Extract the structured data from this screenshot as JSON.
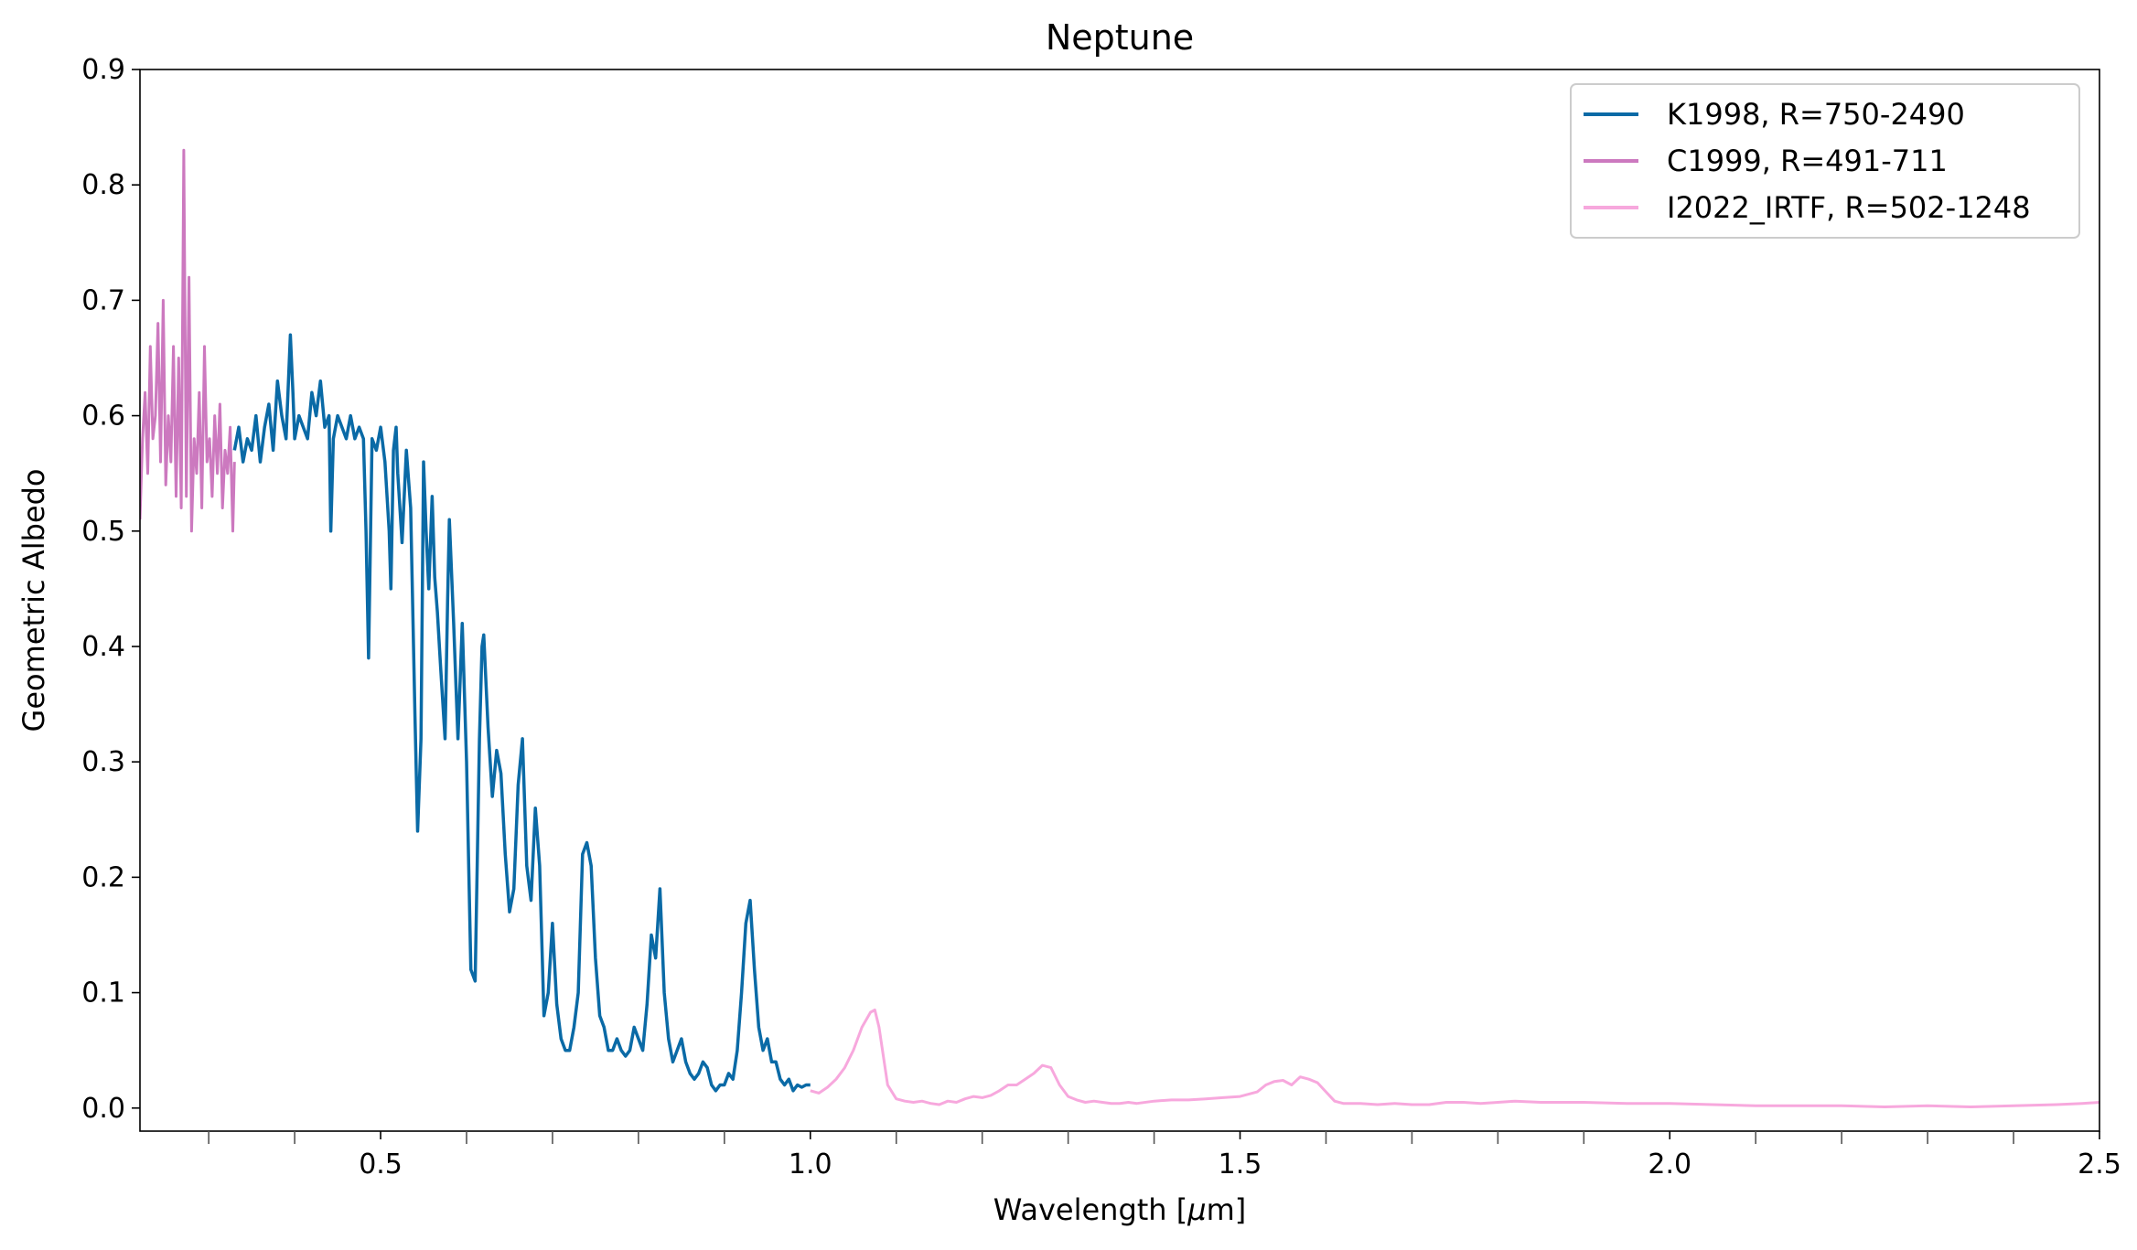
{
  "chart_data": {
    "type": "line",
    "title": "Neptune",
    "xlabel_prefix": "Wavelength [",
    "xlabel_unit_mu": "μ",
    "xlabel_suffix": "m]",
    "ylabel": "Geometric Albedo",
    "xlim": [
      0.22,
      2.5
    ],
    "ylim": [
      -0.02,
      0.9
    ],
    "x_ticks": [
      0.5,
      1.0,
      1.5,
      2.0,
      2.5
    ],
    "x_tick_labels": [
      "0.5",
      "1.0",
      "1.5",
      "2.0",
      "2.5"
    ],
    "x_minor_ticks": [
      0.3,
      0.4,
      0.6,
      0.7,
      0.8,
      0.9,
      1.1,
      1.2,
      1.3,
      1.4,
      1.6,
      1.7,
      1.8,
      1.9,
      2.1,
      2.2,
      2.3,
      2.4
    ],
    "y_ticks": [
      0.0,
      0.1,
      0.2,
      0.3,
      0.4,
      0.5,
      0.6,
      0.7,
      0.8,
      0.9
    ],
    "y_tick_labels": [
      "0.0",
      "0.1",
      "0.2",
      "0.3",
      "0.4",
      "0.5",
      "0.6",
      "0.7",
      "0.8",
      "0.9"
    ],
    "grid": false,
    "legend_position": "top-right",
    "series": [
      {
        "name": "K1998, R=750-2490",
        "color": "#0a6aa6",
        "x": [
          0.33,
          0.335,
          0.34,
          0.345,
          0.35,
          0.355,
          0.36,
          0.365,
          0.37,
          0.375,
          0.38,
          0.385,
          0.39,
          0.395,
          0.398,
          0.4,
          0.405,
          0.41,
          0.415,
          0.42,
          0.425,
          0.43,
          0.435,
          0.44,
          0.442,
          0.445,
          0.45,
          0.455,
          0.46,
          0.465,
          0.47,
          0.475,
          0.48,
          0.483,
          0.486,
          0.49,
          0.495,
          0.5,
          0.505,
          0.51,
          0.512,
          0.515,
          0.518,
          0.52,
          0.525,
          0.53,
          0.535,
          0.54,
          0.543,
          0.547,
          0.55,
          0.553,
          0.556,
          0.56,
          0.563,
          0.566,
          0.57,
          0.575,
          0.578,
          0.58,
          0.585,
          0.59,
          0.595,
          0.6,
          0.605,
          0.61,
          0.615,
          0.618,
          0.62,
          0.625,
          0.63,
          0.635,
          0.64,
          0.645,
          0.65,
          0.655,
          0.66,
          0.665,
          0.67,
          0.675,
          0.68,
          0.685,
          0.69,
          0.695,
          0.7,
          0.705,
          0.71,
          0.715,
          0.72,
          0.725,
          0.73,
          0.735,
          0.74,
          0.745,
          0.75,
          0.755,
          0.76,
          0.765,
          0.77,
          0.775,
          0.78,
          0.785,
          0.79,
          0.795,
          0.8,
          0.805,
          0.81,
          0.815,
          0.82,
          0.825,
          0.83,
          0.835,
          0.84,
          0.845,
          0.85,
          0.855,
          0.86,
          0.865,
          0.87,
          0.875,
          0.88,
          0.885,
          0.89,
          0.895,
          0.9,
          0.905,
          0.91,
          0.915,
          0.92,
          0.925,
          0.93,
          0.935,
          0.94,
          0.945,
          0.95,
          0.955,
          0.96,
          0.965,
          0.97,
          0.975,
          0.98,
          0.985,
          0.99,
          0.995,
          1.0
        ],
        "y": [
          0.57,
          0.59,
          0.56,
          0.58,
          0.57,
          0.6,
          0.56,
          0.59,
          0.61,
          0.57,
          0.63,
          0.6,
          0.58,
          0.67,
          0.62,
          0.58,
          0.6,
          0.59,
          0.58,
          0.62,
          0.6,
          0.63,
          0.59,
          0.6,
          0.5,
          0.58,
          0.6,
          0.59,
          0.58,
          0.6,
          0.58,
          0.59,
          0.58,
          0.5,
          0.39,
          0.58,
          0.57,
          0.59,
          0.56,
          0.5,
          0.45,
          0.57,
          0.59,
          0.55,
          0.49,
          0.57,
          0.52,
          0.34,
          0.24,
          0.32,
          0.56,
          0.5,
          0.45,
          0.53,
          0.46,
          0.43,
          0.38,
          0.32,
          0.44,
          0.51,
          0.42,
          0.32,
          0.42,
          0.3,
          0.12,
          0.11,
          0.32,
          0.4,
          0.41,
          0.33,
          0.27,
          0.31,
          0.29,
          0.22,
          0.17,
          0.19,
          0.28,
          0.32,
          0.21,
          0.18,
          0.26,
          0.21,
          0.08,
          0.1,
          0.16,
          0.09,
          0.06,
          0.05,
          0.05,
          0.07,
          0.1,
          0.22,
          0.23,
          0.21,
          0.13,
          0.08,
          0.07,
          0.05,
          0.05,
          0.06,
          0.05,
          0.045,
          0.05,
          0.07,
          0.06,
          0.05,
          0.09,
          0.15,
          0.13,
          0.19,
          0.1,
          0.06,
          0.04,
          0.05,
          0.06,
          0.04,
          0.03,
          0.025,
          0.03,
          0.04,
          0.035,
          0.02,
          0.015,
          0.02,
          0.02,
          0.03,
          0.025,
          0.05,
          0.1,
          0.16,
          0.18,
          0.12,
          0.07,
          0.05,
          0.06,
          0.04,
          0.04,
          0.025,
          0.02,
          0.025,
          0.015,
          0.02,
          0.018,
          0.02,
          0.02
        ]
      },
      {
        "name": "C1999, R=491-711",
        "color": "#cc79bf",
        "x": [
          0.22,
          0.223,
          0.226,
          0.229,
          0.232,
          0.235,
          0.238,
          0.241,
          0.244,
          0.247,
          0.25,
          0.253,
          0.256,
          0.259,
          0.262,
          0.265,
          0.268,
          0.271,
          0.274,
          0.277,
          0.28,
          0.283,
          0.286,
          0.289,
          0.292,
          0.295,
          0.298,
          0.301,
          0.304,
          0.307,
          0.31,
          0.313,
          0.316,
          0.319,
          0.322,
          0.325,
          0.328,
          0.33
        ],
        "y": [
          0.51,
          0.58,
          0.62,
          0.55,
          0.66,
          0.58,
          0.6,
          0.68,
          0.56,
          0.7,
          0.54,
          0.6,
          0.56,
          0.66,
          0.53,
          0.65,
          0.52,
          0.83,
          0.53,
          0.72,
          0.5,
          0.58,
          0.55,
          0.62,
          0.52,
          0.66,
          0.56,
          0.58,
          0.53,
          0.6,
          0.55,
          0.61,
          0.52,
          0.57,
          0.55,
          0.59,
          0.5,
          0.56
        ]
      },
      {
        "name": "I2022_IRTF, R=502-1248",
        "color": "#f7a8dd",
        "x": [
          1.0,
          1.01,
          1.02,
          1.03,
          1.04,
          1.05,
          1.06,
          1.07,
          1.075,
          1.08,
          1.09,
          1.1,
          1.11,
          1.12,
          1.13,
          1.14,
          1.15,
          1.16,
          1.17,
          1.18,
          1.19,
          1.2,
          1.21,
          1.22,
          1.23,
          1.24,
          1.25,
          1.26,
          1.27,
          1.275,
          1.28,
          1.29,
          1.3,
          1.31,
          1.32,
          1.33,
          1.34,
          1.35,
          1.36,
          1.37,
          1.38,
          1.4,
          1.42,
          1.44,
          1.46,
          1.48,
          1.5,
          1.52,
          1.53,
          1.54,
          1.55,
          1.56,
          1.57,
          1.58,
          1.59,
          1.6,
          1.61,
          1.62,
          1.64,
          1.66,
          1.68,
          1.7,
          1.72,
          1.74,
          1.76,
          1.78,
          1.8,
          1.82,
          1.85,
          1.9,
          1.95,
          2.0,
          2.05,
          2.1,
          2.15,
          2.2,
          2.25,
          2.3,
          2.35,
          2.4,
          2.45,
          2.48,
          2.5
        ],
        "y": [
          0.015,
          0.013,
          0.018,
          0.025,
          0.035,
          0.05,
          0.07,
          0.083,
          0.085,
          0.07,
          0.02,
          0.008,
          0.006,
          0.005,
          0.006,
          0.004,
          0.003,
          0.006,
          0.005,
          0.008,
          0.01,
          0.009,
          0.011,
          0.015,
          0.02,
          0.02,
          0.025,
          0.03,
          0.037,
          0.036,
          0.035,
          0.02,
          0.01,
          0.007,
          0.005,
          0.006,
          0.005,
          0.004,
          0.004,
          0.005,
          0.004,
          0.006,
          0.007,
          0.007,
          0.008,
          0.009,
          0.01,
          0.014,
          0.02,
          0.023,
          0.024,
          0.02,
          0.027,
          0.025,
          0.022,
          0.014,
          0.006,
          0.004,
          0.004,
          0.003,
          0.004,
          0.003,
          0.003,
          0.005,
          0.005,
          0.004,
          0.005,
          0.006,
          0.005,
          0.005,
          0.004,
          0.004,
          0.003,
          0.002,
          0.002,
          0.002,
          0.001,
          0.002,
          0.001,
          0.002,
          0.003,
          0.004,
          0.005
        ]
      }
    ]
  }
}
